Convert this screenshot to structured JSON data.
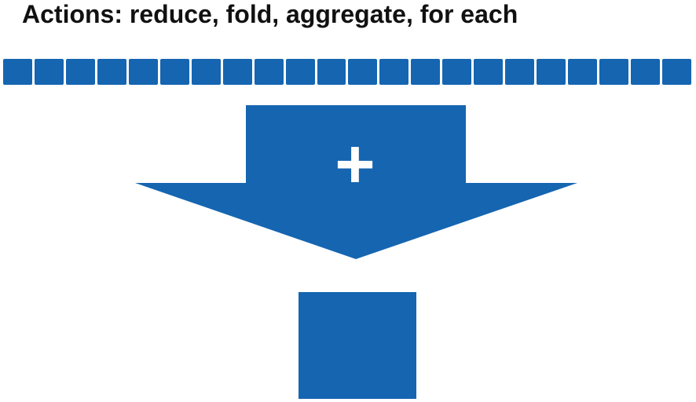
{
  "title": "Actions: reduce, fold, aggregate, for each",
  "colors": {
    "blue": "#1565b1",
    "text": "#111111",
    "white": "#ffffff"
  },
  "input_elements": {
    "count": 22
  },
  "operation": {
    "symbol": "+"
  },
  "result": {
    "count": 1
  }
}
